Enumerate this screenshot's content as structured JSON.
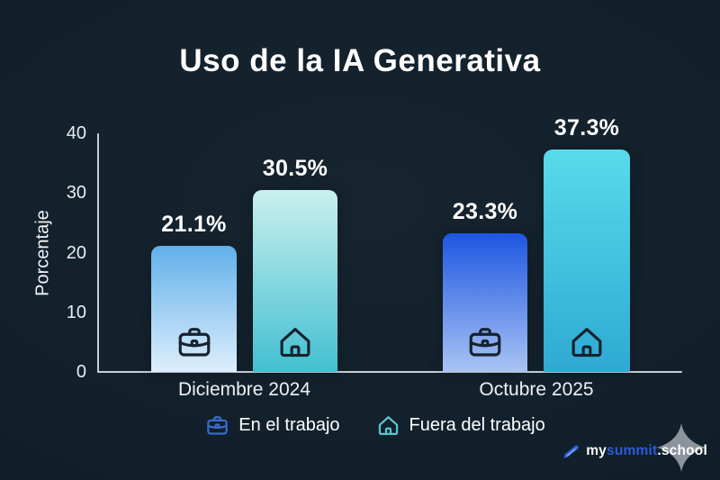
{
  "title": "Uso de la IA Generativa",
  "chart_data": {
    "type": "bar",
    "title": "Uso de la IA Generativa",
    "xlabel": "",
    "ylabel": "Porcentaje",
    "ylim": [
      0,
      40
    ],
    "yticks": [
      0,
      10,
      20,
      30,
      40
    ],
    "grid": false,
    "legend_position": "bottom",
    "categories": [
      "Diciembre 2024",
      "Octubre 2025"
    ],
    "series": [
      {
        "name": "En el trabajo",
        "icon": "briefcase-icon",
        "values": [
          21.1,
          23.3
        ]
      },
      {
        "name": "Fuera del trabajo",
        "icon": "house-icon",
        "values": [
          30.5,
          37.3
        ]
      }
    ],
    "bars": [
      {
        "category": "Diciembre 2024",
        "series": "En el trabajo",
        "value": 21.1,
        "label": "21.1%",
        "icon": "briefcase-icon",
        "gradient": [
          "#61b0ea",
          "#ddeefc"
        ]
      },
      {
        "category": "Diciembre 2024",
        "series": "Fuera del trabajo",
        "value": 30.5,
        "label": "30.5%",
        "icon": "house-icon",
        "gradient": [
          "#c9f0ee",
          "#43bfd1"
        ]
      },
      {
        "category": "Octubre 2025",
        "series": "En el trabajo",
        "value": 23.3,
        "label": "23.3%",
        "icon": "briefcase-icon",
        "gradient": [
          "#1d56e2",
          "#a9c3f3"
        ]
      },
      {
        "category": "Octubre 2025",
        "series": "Fuera del trabajo",
        "value": 37.3,
        "label": "37.3%",
        "icon": "house-icon",
        "gradient": [
          "#58dbea",
          "#2fa9d3"
        ]
      }
    ]
  },
  "legend": {
    "items": [
      {
        "label": "En el trabajo",
        "icon": "briefcase-icon",
        "color": "#3b6ace"
      },
      {
        "label": "Fuera del trabajo",
        "icon": "house-icon",
        "color": "#5ac4cd"
      }
    ]
  },
  "branding": {
    "text_prefix": "my",
    "text_highlight": "summit",
    "text_suffix": ".school",
    "highlight_color": "#2b5cd9",
    "icon": "pen-icon",
    "star_icon": "sparkle-star-icon"
  },
  "colors": {
    "background": "#12202b",
    "axis": "#c9ced6",
    "text": "#ffffff",
    "icon_on_bar": "#16222f"
  }
}
